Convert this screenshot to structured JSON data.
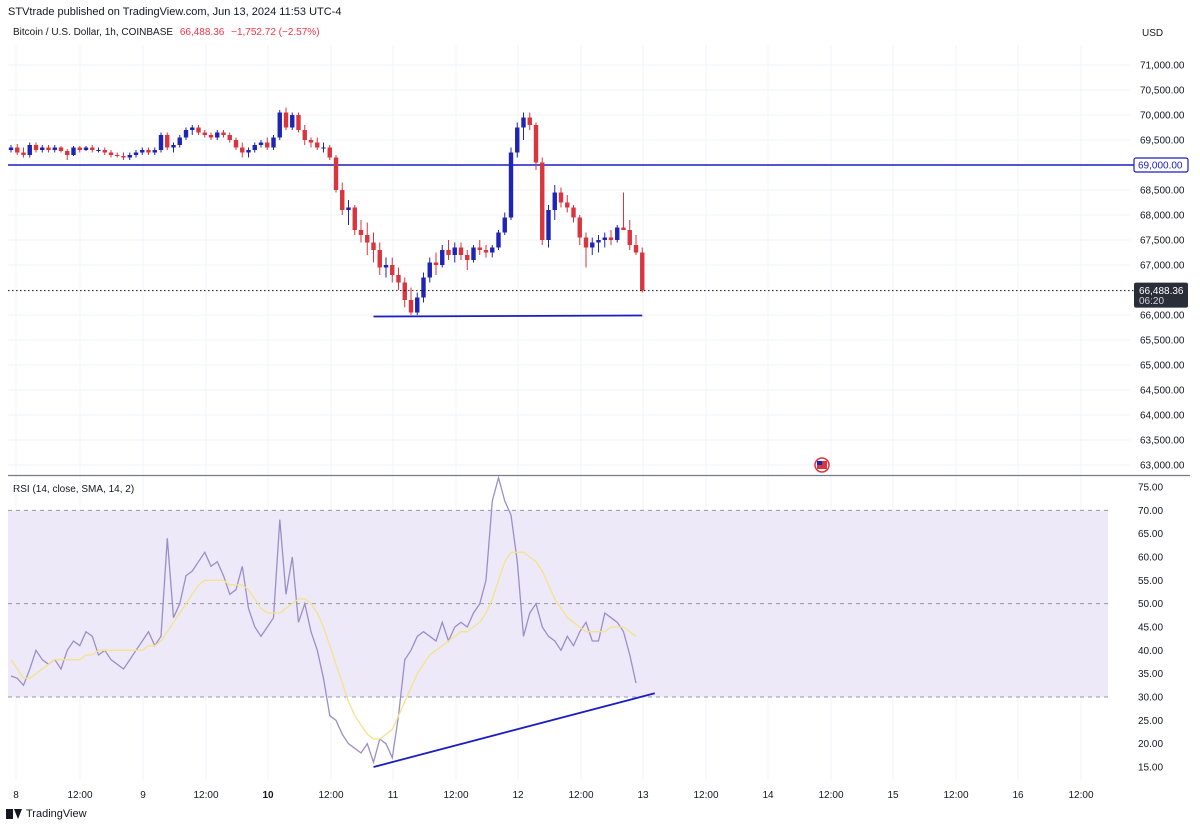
{
  "header": {
    "publish_line": "STVtrade published on TradingView.com, Jun 13, 2024 11:53 UTC-4"
  },
  "symbol": {
    "name": "Bitcoin / U.S. Dollar, 1h, COINBASE",
    "price": "66,488.36",
    "change": "−1,752.72 (−2.57%)"
  },
  "currency": "USD",
  "footer": {
    "brand": "TradingView"
  },
  "colors": {
    "up": "#1e24b4",
    "down": "#d9353f",
    "trendline": "#1a1dc2",
    "rsi": "#9c8ec8",
    "rsi_ma": "#f5e28c",
    "rsi_band": "#ede9f8",
    "price_tag": "#2a2e39"
  },
  "chart_data": [
    {
      "type": "candlestick",
      "title": "Bitcoin / U.S. Dollar, 1h, COINBASE",
      "ylim": [
        62800,
        71500
      ],
      "y_ticks": [
        63000,
        63500,
        64000,
        64500,
        65000,
        65500,
        66000,
        66500,
        67000,
        67500,
        68000,
        68500,
        69000,
        69500,
        70000,
        70500,
        71000
      ],
      "y_tick_labels": [
        "63,000.00",
        "63,500.00",
        "64,000.00",
        "64,500.00",
        "65,000.00",
        "65,500.00",
        "66,000.00",
        "66,500.00",
        "67,000.00",
        "67,500.00",
        "68,000.00",
        "68,500.00",
        "69,000.00",
        "69,500.00",
        "70,000.00",
        "70,500.00",
        "71,000.00"
      ],
      "x_ticks": [
        {
          "label": "8",
          "bold": false
        },
        {
          "label": "12:00",
          "bold": false
        },
        {
          "label": "9",
          "bold": false
        },
        {
          "label": "12:00",
          "bold": false
        },
        {
          "label": "10",
          "bold": true
        },
        {
          "label": "12:00",
          "bold": false
        },
        {
          "label": "11",
          "bold": false
        },
        {
          "label": "12:00",
          "bold": false
        },
        {
          "label": "12",
          "bold": false
        },
        {
          "label": "12:00",
          "bold": false
        },
        {
          "label": "13",
          "bold": false
        },
        {
          "label": "12:00",
          "bold": false
        },
        {
          "label": "14",
          "bold": false
        },
        {
          "label": "12:00",
          "bold": false
        },
        {
          "label": "15",
          "bold": false
        },
        {
          "label": "12:00",
          "bold": false
        },
        {
          "label": "16",
          "bold": false
        },
        {
          "label": "12:00",
          "bold": false
        }
      ],
      "candles": [
        [
          69300,
          69400,
          69250,
          69350
        ],
        [
          69350,
          69420,
          69200,
          69250
        ],
        [
          69250,
          69350,
          69150,
          69200
        ],
        [
          69200,
          69450,
          69150,
          69400
        ],
        [
          69400,
          69450,
          69250,
          69300
        ],
        [
          69300,
          69400,
          69250,
          69350
        ],
        [
          69350,
          69400,
          69250,
          69300
        ],
        [
          69300,
          69400,
          69250,
          69350
        ],
        [
          69350,
          69380,
          69250,
          69280
        ],
        [
          69280,
          69320,
          69100,
          69200
        ],
        [
          69200,
          69380,
          69180,
          69350
        ],
        [
          69350,
          69380,
          69250,
          69300
        ],
        [
          69300,
          69380,
          69280,
          69350
        ],
        [
          69350,
          69400,
          69250,
          69300
        ],
        [
          69300,
          69350,
          69250,
          69300
        ],
        [
          69300,
          69350,
          69200,
          69250
        ],
        [
          69250,
          69300,
          69150,
          69200
        ],
        [
          69200,
          69250,
          69150,
          69180
        ],
        [
          69180,
          69250,
          69100,
          69150
        ],
        [
          69150,
          69250,
          69100,
          69200
        ],
        [
          69200,
          69300,
          69150,
          69250
        ],
        [
          69250,
          69350,
          69200,
          69300
        ],
        [
          69300,
          69350,
          69200,
          69250
        ],
        [
          69250,
          69350,
          69200,
          69300
        ],
        [
          69300,
          69650,
          69250,
          69600
        ],
        [
          69600,
          69650,
          69300,
          69350
        ],
        [
          69350,
          69450,
          69250,
          69400
        ],
        [
          69400,
          69600,
          69350,
          69550
        ],
        [
          69550,
          69750,
          69500,
          69700
        ],
        [
          69700,
          69800,
          69600,
          69750
        ],
        [
          69750,
          69800,
          69600,
          69650
        ],
        [
          69650,
          69700,
          69550,
          69600
        ],
        [
          69600,
          69650,
          69500,
          69550
        ],
        [
          69550,
          69700,
          69500,
          69650
        ],
        [
          69650,
          69700,
          69550,
          69600
        ],
        [
          69600,
          69650,
          69450,
          69500
        ],
        [
          69500,
          69550,
          69300,
          69350
        ],
        [
          69350,
          69450,
          69150,
          69250
        ],
        [
          69250,
          69350,
          69150,
          69300
        ],
        [
          69300,
          69450,
          69250,
          69400
        ],
        [
          69400,
          69500,
          69350,
          69450
        ],
        [
          69450,
          69550,
          69300,
          69350
        ],
        [
          69350,
          69600,
          69300,
          69550
        ],
        [
          69550,
          70100,
          69500,
          70050
        ],
        [
          70050,
          70150,
          69700,
          69750
        ],
        [
          69750,
          70050,
          69700,
          70000
        ],
        [
          70000,
          70050,
          69650,
          69700
        ],
        [
          69700,
          69800,
          69400,
          69500
        ],
        [
          69500,
          69550,
          69350,
          69450
        ],
        [
          69450,
          69550,
          69300,
          69350
        ],
        [
          69350,
          69450,
          69250,
          69350
        ],
        [
          69350,
          69400,
          69100,
          69150
        ],
        [
          69150,
          69200,
          68450,
          68500
        ],
        [
          68500,
          68650,
          68000,
          68100
        ],
        [
          68100,
          68300,
          67800,
          68150
        ],
        [
          68150,
          68200,
          67600,
          67700
        ],
        [
          67700,
          67900,
          67450,
          67600
        ],
        [
          67600,
          67850,
          67200,
          67450
        ],
        [
          67450,
          67650,
          67050,
          67300
        ],
        [
          67300,
          67450,
          66800,
          66950
        ],
        [
          66950,
          67150,
          66750,
          67000
        ],
        [
          67000,
          67150,
          66650,
          66800
        ],
        [
          66800,
          66950,
          66500,
          66650
        ],
        [
          66650,
          66750,
          66150,
          66300
        ],
        [
          66300,
          66550,
          66000,
          66050
        ],
        [
          66050,
          66450,
          66000,
          66350
        ],
        [
          66350,
          66850,
          66250,
          66750
        ],
        [
          66750,
          67150,
          66650,
          67050
        ],
        [
          67050,
          67250,
          66800,
          67000
        ],
        [
          67000,
          67400,
          66950,
          67300
        ],
        [
          67300,
          67500,
          67100,
          67200
        ],
        [
          67200,
          67450,
          67050,
          67350
        ],
        [
          67350,
          67450,
          67100,
          67200
        ],
        [
          67200,
          67300,
          66900,
          67100
        ],
        [
          67100,
          67400,
          67050,
          67350
        ],
        [
          67350,
          67500,
          67200,
          67300
        ],
        [
          67300,
          67400,
          67150,
          67250
        ],
        [
          67250,
          67400,
          67150,
          67350
        ],
        [
          67350,
          67700,
          67300,
          67650
        ],
        [
          67650,
          68050,
          67600,
          67950
        ],
        [
          67950,
          69350,
          67900,
          69250
        ],
        [
          69250,
          69850,
          69150,
          69750
        ],
        [
          69750,
          70050,
          69500,
          69950
        ],
        [
          69950,
          70050,
          69700,
          69800
        ],
        [
          69800,
          69850,
          68900,
          69050
        ],
        [
          69050,
          69150,
          67400,
          67500
        ],
        [
          67500,
          68200,
          67350,
          68100
        ],
        [
          68100,
          68600,
          67900,
          68450
        ],
        [
          68450,
          68550,
          68150,
          68250
        ],
        [
          68250,
          68400,
          68050,
          68150
        ],
        [
          68150,
          68200,
          67850,
          67950
        ],
        [
          67950,
          68000,
          67400,
          67550
        ],
        [
          67550,
          67650,
          66950,
          67350
        ],
        [
          67350,
          67550,
          67200,
          67450
        ],
        [
          67450,
          67600,
          67250,
          67500
        ],
        [
          67500,
          67650,
          67350,
          67550
        ],
        [
          67550,
          67700,
          67400,
          67500
        ],
        [
          67500,
          67800,
          67450,
          67750
        ],
        [
          67750,
          68450,
          67700,
          67700
        ],
        [
          67700,
          67900,
          67300,
          67400
        ],
        [
          67400,
          67600,
          67200,
          67250
        ],
        [
          67250,
          67350,
          66450,
          66488
        ]
      ],
      "horizontal_level": 69000,
      "level_label": "69,000.00",
      "last_price_label": "66,488.36",
      "countdown_label": "06:20",
      "support_line": {
        "start": {
          "x_index": 58,
          "y": 65970
        },
        "end": {
          "x_index": 101,
          "y": 65990
        }
      }
    },
    {
      "type": "line",
      "title": "RSI (14, close, SMA, 14, 2)",
      "ylim": [
        12,
        77
      ],
      "y_ticks": [
        15,
        20,
        25,
        30,
        35,
        40,
        45,
        50,
        55,
        60,
        65,
        70,
        75
      ],
      "y_tick_labels": [
        "15.00",
        "20.00",
        "25.00",
        "30.00",
        "35.00",
        "40.00",
        "45.00",
        "50.00",
        "55.00",
        "60.00",
        "65.00",
        "70.00",
        "75.00"
      ],
      "bands": {
        "upper": 70,
        "middle": 50,
        "lower": 30
      },
      "series": [
        {
          "key": "rsi",
          "values": [
            34.5,
            34,
            32.5,
            36,
            40,
            38,
            37,
            38,
            36,
            40,
            42,
            41,
            44,
            43,
            39,
            40,
            38,
            37,
            36,
            38,
            40,
            42,
            44,
            41,
            43,
            64,
            47,
            50,
            56,
            57,
            59,
            61,
            58,
            59,
            56,
            52,
            53,
            58,
            49,
            45,
            43,
            45,
            47,
            68,
            52,
            60,
            46,
            50,
            44,
            40,
            34,
            26,
            25,
            22,
            20,
            19,
            18,
            20,
            16,
            21,
            20,
            17,
            26,
            38,
            40,
            43,
            44,
            43,
            42,
            46,
            42,
            45,
            46,
            45,
            48,
            50,
            55,
            72,
            77,
            72,
            69,
            59,
            43,
            48,
            50,
            45,
            43,
            42,
            40,
            43,
            41,
            44,
            46,
            42,
            42,
            48,
            47,
            46,
            44,
            39,
            33
          ],
          "x_start_index": 0
        },
        {
          "key": "rsi_ma",
          "values": [
            38,
            36,
            34,
            34,
            35,
            36,
            37,
            38,
            38,
            38,
            38,
            38,
            39,
            39,
            40,
            40,
            40,
            40,
            40,
            40,
            40,
            40,
            41,
            41,
            42,
            44,
            46,
            48,
            50,
            52,
            54,
            55,
            55,
            55,
            55,
            54,
            54,
            54,
            53,
            51,
            49,
            48,
            48,
            48,
            49,
            50,
            51,
            51,
            50,
            48,
            45,
            41,
            37,
            33,
            29,
            26,
            24,
            22,
            21,
            21,
            22,
            23,
            26,
            29,
            32,
            35,
            37,
            39,
            40,
            41,
            42,
            43,
            44,
            44,
            45,
            46,
            48,
            51,
            55,
            59,
            61,
            61,
            61,
            60,
            59,
            57,
            54,
            51,
            49,
            47,
            46,
            45,
            44,
            44,
            44,
            44,
            45,
            45,
            45,
            44,
            43
          ],
          "x_start_index": 0
        }
      ],
      "trendline": {
        "start": {
          "x_index": 58,
          "y": 15
        },
        "end": {
          "x_index": 103,
          "y": 30.8
        }
      }
    }
  ]
}
